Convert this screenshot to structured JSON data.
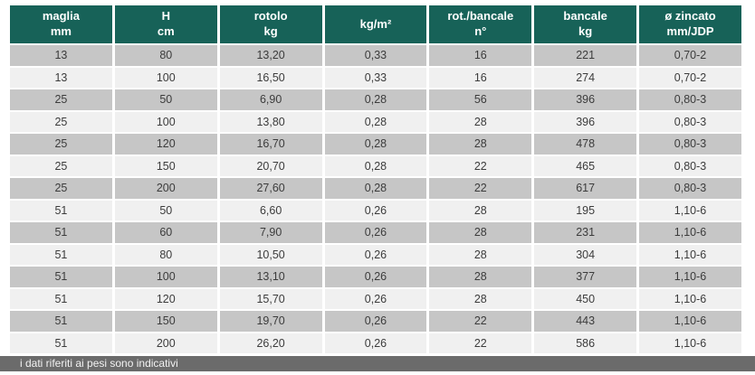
{
  "table": {
    "columns": [
      {
        "l1": "maglia",
        "l2": "mm"
      },
      {
        "l1": "H",
        "l2": "cm"
      },
      {
        "l1": "rotolo",
        "l2": "kg"
      },
      {
        "l1": "kg/m²",
        "l2": ""
      },
      {
        "l1": "rot./bancale",
        "l2": "n°"
      },
      {
        "l1": "bancale",
        "l2": "kg"
      },
      {
        "l1": "ø zincato",
        "l2": "mm/JDP"
      }
    ],
    "rows": [
      [
        "13",
        "80",
        "13,20",
        "0,33",
        "16",
        "221",
        "0,70-2"
      ],
      [
        "13",
        "100",
        "16,50",
        "0,33",
        "16",
        "274",
        "0,70-2"
      ],
      [
        "25",
        "50",
        "6,90",
        "0,28",
        "56",
        "396",
        "0,80-3"
      ],
      [
        "25",
        "100",
        "13,80",
        "0,28",
        "28",
        "396",
        "0,80-3"
      ],
      [
        "25",
        "120",
        "16,70",
        "0,28",
        "28",
        "478",
        "0,80-3"
      ],
      [
        "25",
        "150",
        "20,70",
        "0,28",
        "22",
        "465",
        "0,80-3"
      ],
      [
        "25",
        "200",
        "27,60",
        "0,28",
        "22",
        "617",
        "0,80-3"
      ],
      [
        "51",
        "50",
        "6,60",
        "0,26",
        "28",
        "195",
        "1,10-6"
      ],
      [
        "51",
        "60",
        "7,90",
        "0,26",
        "28",
        "231",
        "1,10-6"
      ],
      [
        "51",
        "80",
        "10,50",
        "0,26",
        "28",
        "304",
        "1,10-6"
      ],
      [
        "51",
        "100",
        "13,10",
        "0,26",
        "28",
        "377",
        "1,10-6"
      ],
      [
        "51",
        "120",
        "15,70",
        "0,26",
        "28",
        "450",
        "1,10-6"
      ],
      [
        "51",
        "150",
        "19,70",
        "0,26",
        "22",
        "443",
        "1,10-6"
      ],
      [
        "51",
        "200",
        "26,20",
        "0,26",
        "22",
        "586",
        "1,10-6"
      ]
    ]
  },
  "footer": {
    "note": "i dati riferiti ai pesi sono indicativi"
  },
  "colors": {
    "header_bg": "#176258",
    "header_text": "#ffffff",
    "row_dark": "#c6c6c6",
    "row_light": "#f0f0f0",
    "body_text": "#3c3c3c",
    "footer_bg": "#6b6b6b",
    "footer_text": "#f2f2f2"
  }
}
